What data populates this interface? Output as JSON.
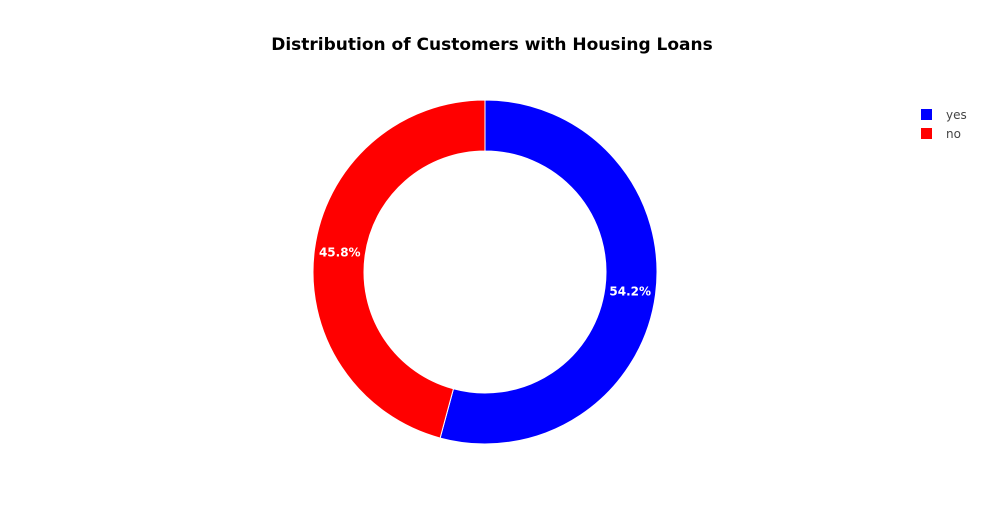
{
  "chart_data": {
    "type": "pie",
    "title": "Distribution of Customers with Housing Loans",
    "hole": true,
    "categories": [
      "yes",
      "no"
    ],
    "values": [
      54.2,
      45.8
    ],
    "labels": [
      "54.2%",
      "45.8%"
    ],
    "colors": [
      "#0000ff",
      "#ff0000"
    ],
    "legend": {
      "position": "top-right",
      "entries": [
        "yes",
        "no"
      ]
    }
  }
}
